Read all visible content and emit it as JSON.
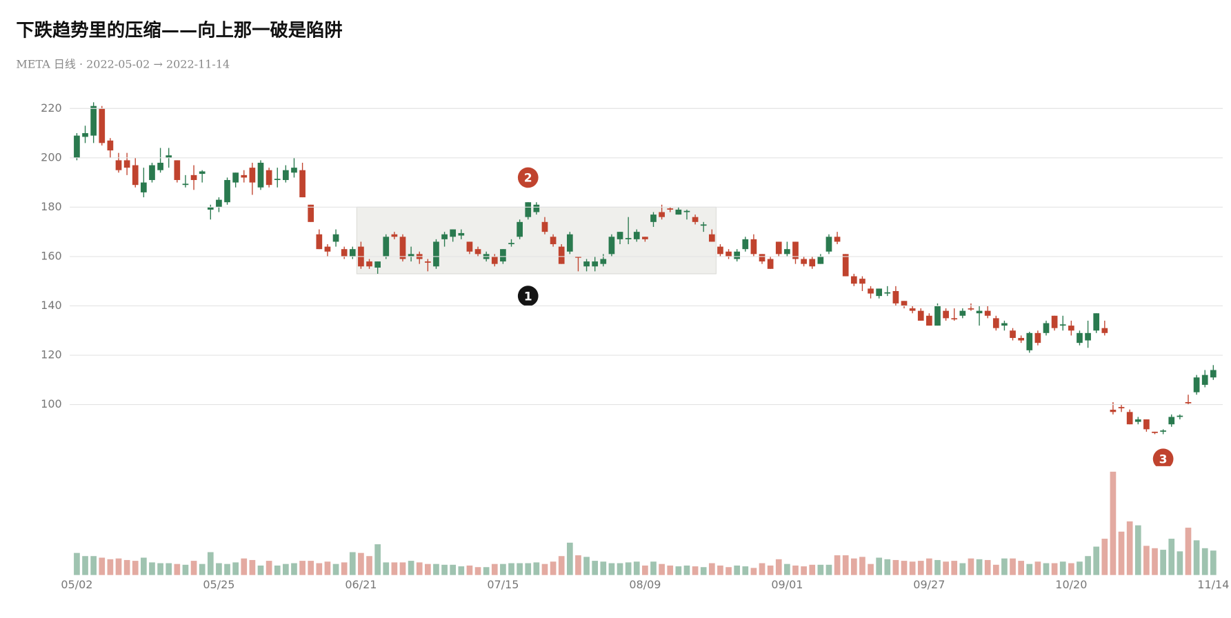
{
  "chart_data": {
    "type": "candlestick",
    "title": "下跌趋势里的压缩——向上那一破是陷阱",
    "subtitle": "META 日线 · 2022-05-02 → 2022-11-14",
    "x": [
      "05/02",
      "05/03",
      "05/04",
      "05/05",
      "05/06",
      "05/09",
      "05/10",
      "05/11",
      "05/12",
      "05/13",
      "05/16",
      "05/17",
      "05/18",
      "05/19",
      "05/20",
      "05/23",
      "05/24",
      "05/25",
      "05/26",
      "05/27",
      "05/31",
      "06/01",
      "06/02",
      "06/03",
      "06/06",
      "06/07",
      "06/08",
      "06/09",
      "06/10",
      "06/13",
      "06/14",
      "06/15",
      "06/16",
      "06/17",
      "06/21",
      "06/22",
      "06/23",
      "06/24",
      "06/27",
      "06/28",
      "06/29",
      "06/30",
      "07/01",
      "07/05",
      "07/06",
      "07/07",
      "07/08",
      "07/11",
      "07/12",
      "07/13",
      "07/14",
      "07/15",
      "07/18",
      "07/19",
      "07/20",
      "07/21",
      "07/22",
      "07/25",
      "07/26",
      "07/27",
      "07/28",
      "07/29",
      "08/01",
      "08/02",
      "08/03",
      "08/04",
      "08/05",
      "08/08",
      "08/09",
      "08/10",
      "08/11",
      "08/12",
      "08/15",
      "08/16",
      "08/17",
      "08/18",
      "08/19",
      "08/22",
      "08/23",
      "08/24",
      "08/25",
      "08/26",
      "08/29",
      "08/30",
      "08/31",
      "09/01",
      "09/02",
      "09/06",
      "09/07",
      "09/08",
      "09/09",
      "09/12",
      "09/13",
      "09/14",
      "09/15",
      "09/16",
      "09/19",
      "09/20",
      "09/21",
      "09/22",
      "09/23",
      "09/26",
      "09/27",
      "09/28",
      "09/29",
      "09/30",
      "10/03",
      "10/04",
      "10/05",
      "10/06",
      "10/07",
      "10/10",
      "10/11",
      "10/12",
      "10/13",
      "10/14",
      "10/17",
      "10/18",
      "10/19",
      "10/20",
      "10/21",
      "10/24",
      "10/25",
      "10/26",
      "10/27",
      "10/28",
      "10/31",
      "11/01",
      "11/02",
      "11/03",
      "11/04",
      "11/07",
      "11/08",
      "11/09",
      "11/10",
      "11/11",
      "11/14"
    ],
    "open": [
      200,
      208.5,
      209,
      220,
      207,
      199,
      199,
      197,
      186,
      191,
      195,
      200,
      199,
      189,
      193,
      193.5,
      179,
      180,
      182,
      190,
      193,
      196,
      188,
      195,
      191,
      191,
      194,
      195,
      181,
      169,
      164,
      166,
      163,
      160,
      164,
      158,
      155.5,
      160,
      169,
      168,
      160,
      161,
      158,
      156,
      167,
      168,
      168.5,
      166,
      163,
      159,
      160,
      158,
      165,
      168,
      176,
      178,
      174,
      168,
      164,
      162,
      160,
      156,
      156,
      157,
      161,
      167,
      167,
      167,
      168,
      174,
      178,
      179.5,
      177,
      178,
      176,
      172.5,
      169,
      164,
      162,
      159,
      163,
      167,
      161,
      159,
      166,
      161,
      166,
      159,
      159,
      157,
      162,
      168,
      161,
      152,
      151,
      147,
      144,
      145,
      146,
      142,
      139,
      138,
      136,
      132,
      138,
      135,
      136,
      139,
      137,
      138,
      135,
      132,
      130,
      127,
      122,
      129,
      129,
      136,
      132,
      132,
      125,
      126,
      130,
      131,
      97.9,
      99,
      97,
      93,
      94,
      89,
      89,
      92,
      95,
      101,
      105,
      108,
      111
    ],
    "high": [
      210,
      213,
      222.5,
      221,
      208,
      202,
      202,
      200,
      196,
      198,
      204,
      204,
      199,
      193,
      197,
      195,
      181,
      184,
      192,
      194,
      195,
      198,
      199,
      196,
      196,
      197,
      200,
      198,
      181,
      171,
      165,
      171,
      164,
      164,
      166,
      159,
      158,
      169,
      170,
      169,
      164,
      162,
      159,
      167,
      170,
      171,
      171,
      166,
      164,
      162,
      161,
      163,
      167,
      175,
      182,
      182,
      176,
      169,
      165,
      170,
      160,
      159,
      160,
      161,
      169,
      170,
      176,
      171,
      168,
      178,
      181,
      180,
      180,
      179,
      177,
      174,
      171,
      165,
      163,
      163,
      168,
      169,
      161,
      160,
      166,
      166,
      166,
      160,
      160,
      161,
      169,
      170,
      161,
      153,
      152,
      148,
      147,
      148,
      148,
      142,
      140,
      139,
      137,
      141,
      139,
      139,
      139,
      141,
      140,
      140,
      136,
      134,
      131,
      128,
      129.5,
      130,
      134,
      136,
      136,
      134,
      130,
      134,
      137,
      134,
      101,
      100,
      98,
      95,
      94,
      89,
      90,
      96,
      96,
      104,
      112,
      114,
      116
    ],
    "low": [
      199,
      206,
      206,
      205,
      200,
      194,
      193,
      188,
      184,
      190,
      194,
      196,
      190,
      188,
      187,
      190,
      175,
      178,
      181,
      188,
      190,
      185,
      187,
      188,
      188,
      190,
      192,
      184,
      174,
      163,
      160,
      164,
      159,
      159,
      155,
      155,
      153,
      159,
      167,
      158,
      158,
      157,
      154,
      155,
      164,
      166,
      167,
      161,
      160,
      158,
      156,
      157,
      164,
      167,
      175,
      177,
      169,
      164,
      157,
      161,
      154,
      154,
      154,
      156,
      160,
      165,
      165,
      166,
      166,
      172,
      175,
      178,
      177,
      175,
      173,
      170,
      166,
      160,
      159,
      158,
      162,
      160,
      157,
      155,
      160,
      160,
      157,
      156,
      155,
      157,
      161,
      165,
      152,
      148,
      146,
      143,
      143,
      144,
      140,
      139,
      137,
      134,
      132,
      132,
      134,
      134,
      135,
      138,
      132,
      135,
      130,
      130,
      126,
      125,
      121,
      124,
      128,
      130,
      130,
      128,
      124,
      123,
      129,
      128,
      96,
      97,
      92,
      92,
      89,
      88,
      88,
      91,
      94,
      100,
      104,
      107,
      110
    ],
    "close": [
      209,
      210,
      221,
      206,
      203,
      195,
      196,
      189,
      190,
      197,
      198,
      201,
      191,
      189.5,
      191,
      194.5,
      180,
      183,
      191,
      194,
      192,
      190,
      198,
      189,
      191.5,
      195,
      196,
      184,
      174,
      163,
      162,
      169,
      160,
      163,
      156,
      156,
      158,
      168,
      168,
      159,
      161,
      159,
      157.5,
      166,
      169,
      171,
      169.5,
      162,
      161,
      161,
      157,
      163,
      165.5,
      174,
      182,
      181,
      170,
      165,
      157,
      169,
      159.5,
      158,
      158,
      159,
      168,
      170,
      167.5,
      170,
      167,
      177,
      176,
      179,
      179,
      178.5,
      174,
      173,
      166,
      161,
      160,
      162,
      167,
      161,
      158,
      155,
      161,
      163,
      159,
      157,
      156,
      160,
      168,
      166,
      152,
      149,
      149,
      145,
      147,
      145.5,
      141,
      140,
      138,
      134,
      132,
      140,
      135,
      134.6,
      138,
      138.6,
      138,
      136,
      131,
      133,
      127,
      126,
      129,
      125,
      133,
      131,
      132.5,
      130,
      129,
      129,
      137,
      129,
      97,
      98.5,
      92,
      94,
      90,
      88.5,
      89.5,
      95,
      95.5,
      100.5,
      111,
      112,
      114
    ],
    "volume": [
      28,
      24,
      24,
      22,
      20,
      21,
      19,
      18,
      22,
      16,
      15,
      15,
      14,
      13,
      18,
      14,
      29,
      15,
      14,
      16,
      21,
      19,
      12,
      18,
      12,
      14,
      15,
      18,
      18,
      15,
      17,
      14,
      16,
      29,
      28,
      24,
      39,
      16,
      16,
      16,
      18,
      16,
      14,
      14,
      13,
      13,
      11,
      12,
      10,
      10,
      14,
      14,
      15,
      15,
      15,
      16,
      14,
      17,
      24,
      41,
      25,
      23,
      18,
      17,
      15,
      15,
      16,
      17,
      12,
      17,
      14,
      12,
      11,
      12,
      11,
      10,
      15,
      12,
      10,
      12,
      11,
      9,
      15,
      12,
      20,
      14,
      12,
      11,
      13,
      13,
      13,
      25,
      25,
      21,
      23,
      14,
      22,
      20,
      19,
      18,
      17,
      18,
      21,
      19,
      17,
      18,
      15,
      21,
      20,
      19,
      13,
      21,
      21,
      18,
      14,
      17,
      15,
      15,
      17,
      15,
      17,
      24,
      36,
      46,
      131,
      55,
      68,
      63,
      37,
      34,
      32,
      46,
      30,
      60,
      44,
      34,
      31
    ],
    "up_color": "#2a7a4f",
    "down_color": "#c0432e",
    "ylim": [
      76,
      224
    ],
    "yticks": [
      100,
      120,
      140,
      160,
      180,
      200,
      220
    ],
    "xticks": [
      "05/02",
      "05/25",
      "06/21",
      "07/15",
      "08/09",
      "09/01",
      "09/27",
      "10/20",
      "11/14"
    ],
    "grid": true,
    "range_box": {
      "x": [
        "06/21",
        "08/19"
      ],
      "y": [
        153,
        180
      ]
    },
    "annotations": [
      {
        "label": "1",
        "x": "07/20",
        "y": 144,
        "color": "#141414"
      },
      {
        "label": "2",
        "x": "07/20",
        "y": 192,
        "color": "#c0432e"
      },
      {
        "label": "3",
        "x": "11/04",
        "y": 78,
        "color": "#c0432e"
      }
    ]
  }
}
